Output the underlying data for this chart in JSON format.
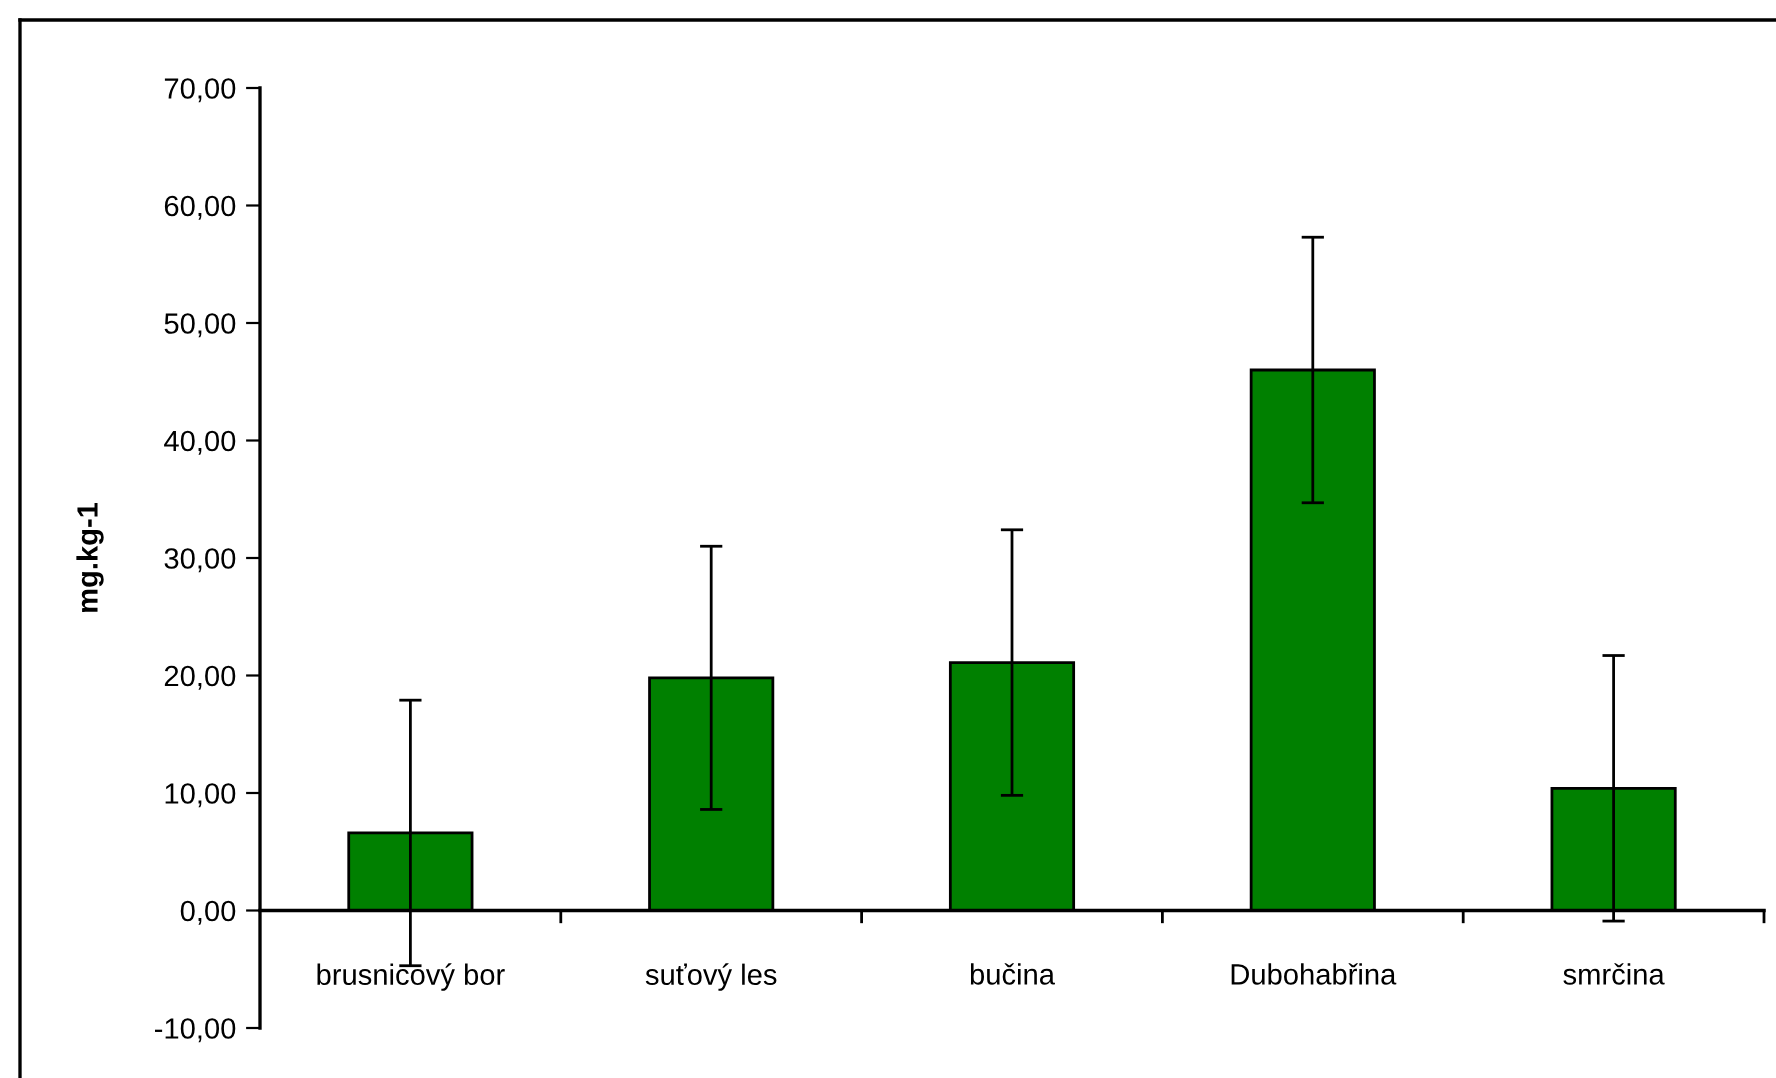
{
  "chart_data": {
    "type": "bar",
    "categories": [
      "brusnicový bor",
      "suťový les",
      "bučina",
      "Dubohabřina",
      "smrčina"
    ],
    "values": [
      6.6,
      19.8,
      21.1,
      46.0,
      10.4
    ],
    "errors": [
      11.3,
      11.2,
      11.3,
      11.3,
      11.3
    ],
    "color": "#008000",
    "ylabel": "mg.kg-1",
    "ylim": [
      -10,
      70
    ],
    "yticks": [
      {
        "value": -10,
        "label": "-10,00"
      },
      {
        "value": 0,
        "label": "0,00"
      },
      {
        "value": 10,
        "label": "10,00"
      },
      {
        "value": 20,
        "label": "20,00"
      },
      {
        "value": 30,
        "label": "30,00"
      },
      {
        "value": 40,
        "label": "40,00"
      },
      {
        "value": 50,
        "label": "50,00"
      },
      {
        "value": 60,
        "label": "60,00"
      },
      {
        "value": 70,
        "label": "70,00"
      }
    ],
    "grid": false,
    "legend": false
  }
}
